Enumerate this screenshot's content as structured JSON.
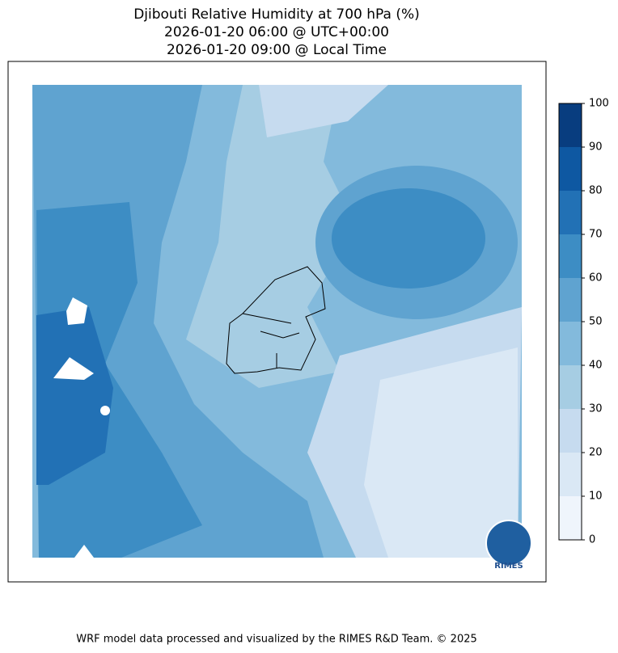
{
  "title": [
    "Djibouti Relative Humidity at 700 hPa (%)",
    "2026-01-20 06:00 @ UTC+00:00",
    "2026-01-20 09:00 @ Local Time"
  ],
  "colorbar": {
    "ticks": [
      0,
      10,
      20,
      30,
      40,
      50,
      60,
      70,
      80,
      90,
      100
    ],
    "colors": [
      "#eff5fc",
      "#dae8f5",
      "#c6dbef",
      "#a6cde3",
      "#83badc",
      "#5fa3d0",
      "#3d8dc4",
      "#2271b5",
      "#0e58a2",
      "#083d7f"
    ]
  },
  "logo": {
    "label": "RIMES"
  },
  "footer": "WRF model data processed and visualized by the RIMES R&D Team. © 2025"
}
